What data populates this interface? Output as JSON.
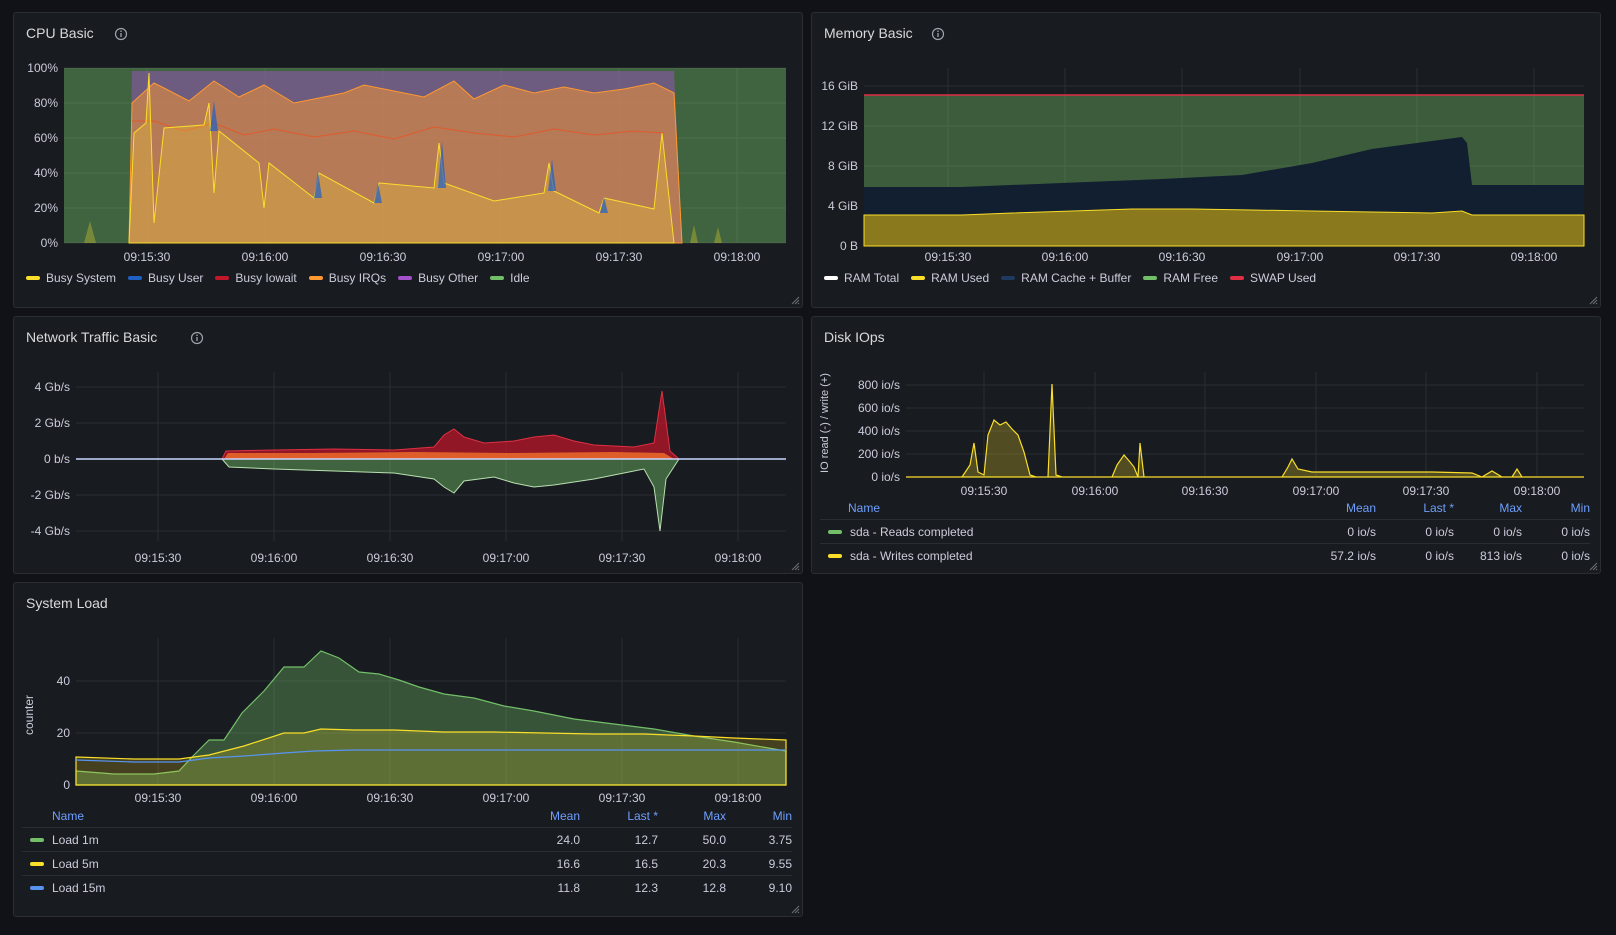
{
  "colors": {
    "green": "#73bf69",
    "yellow": "#fade2a",
    "blue": "#5794f2",
    "red": "#e02f44",
    "orange": "#ff9830",
    "purple": "#a352cc",
    "darkblue": "#1f60c4",
    "white": "#ffffff"
  },
  "cpu": {
    "title": "CPU Basic",
    "info_icon": "info-icon",
    "y_ticks": [
      "100%",
      "80%",
      "60%",
      "40%",
      "20%",
      "0%"
    ],
    "x_ticks": [
      "09:15:30",
      "09:16:00",
      "09:16:30",
      "09:17:00",
      "09:17:30",
      "09:18:00"
    ],
    "legend": [
      {
        "label": "Busy System",
        "color": "#fade2a"
      },
      {
        "label": "Busy User",
        "color": "#1f60c4"
      },
      {
        "label": "Busy Iowait",
        "color": "#c4162a"
      },
      {
        "label": "Busy IRQs",
        "color": "#ff9830"
      },
      {
        "label": "Busy Other",
        "color": "#a352cc"
      },
      {
        "label": "Idle",
        "color": "#73bf69"
      }
    ]
  },
  "memory": {
    "title": "Memory Basic",
    "info_icon": "info-icon",
    "y_ticks": [
      "16 GiB",
      "12 GiB",
      "8 GiB",
      "4 GiB",
      "0 B"
    ],
    "x_ticks": [
      "09:15:30",
      "09:16:00",
      "09:16:30",
      "09:17:00",
      "09:17:30",
      "09:18:00"
    ],
    "legend": [
      {
        "label": "RAM Total",
        "color": "#ffffff"
      },
      {
        "label": "RAM Used",
        "color": "#fade2a"
      },
      {
        "label": "RAM Cache + Buffer",
        "color": "#1f3a5f"
      },
      {
        "label": "RAM Free",
        "color": "#73bf69"
      },
      {
        "label": "SWAP Used",
        "color": "#e02f44"
      }
    ]
  },
  "network": {
    "title": "Network Traffic Basic",
    "info_icon": "info-icon",
    "y_ticks": [
      "4 Gb/s",
      "2 Gb/s",
      "0 b/s",
      "-2 Gb/s",
      "-4 Gb/s"
    ],
    "x_ticks": [
      "09:15:30",
      "09:16:00",
      "09:16:30",
      "09:17:00",
      "09:17:30",
      "09:18:00"
    ]
  },
  "disk": {
    "title": "Disk IOps",
    "y_label": "IO read (-) / write (+)",
    "y_ticks": [
      "800 io/s",
      "600 io/s",
      "400 io/s",
      "200 io/s",
      "0 io/s"
    ],
    "x_ticks": [
      "09:15:30",
      "09:16:00",
      "09:16:30",
      "09:17:00",
      "09:17:30",
      "09:18:00"
    ],
    "table": {
      "headers": [
        "Name",
        "Mean",
        "Last *",
        "Max",
        "Min"
      ],
      "rows": [
        {
          "color": "#73bf69",
          "name": "sda - Reads completed",
          "mean": "0 io/s",
          "last": "0 io/s",
          "max": "0 io/s",
          "min": "0 io/s"
        },
        {
          "color": "#fade2a",
          "name": "sda - Writes completed",
          "mean": "57.2 io/s",
          "last": "0 io/s",
          "max": "813 io/s",
          "min": "0 io/s"
        }
      ]
    }
  },
  "load": {
    "title": "System Load",
    "y_label": "counter",
    "y_ticks": [
      "40",
      "20",
      "0"
    ],
    "x_ticks": [
      "09:15:30",
      "09:16:00",
      "09:16:30",
      "09:17:00",
      "09:17:30",
      "09:18:00"
    ],
    "table": {
      "headers": [
        "Name",
        "Mean",
        "Last *",
        "Max",
        "Min"
      ],
      "rows": [
        {
          "color": "#73bf69",
          "name": "Load 1m",
          "mean": "24.0",
          "last": "12.7",
          "max": "50.0",
          "min": "3.75"
        },
        {
          "color": "#fade2a",
          "name": "Load 5m",
          "mean": "16.6",
          "last": "16.5",
          "max": "20.3",
          "min": "9.55"
        },
        {
          "color": "#5794f2",
          "name": "Load 15m",
          "mean": "11.8",
          "last": "12.3",
          "max": "12.8",
          "min": "9.10"
        }
      ]
    }
  }
}
